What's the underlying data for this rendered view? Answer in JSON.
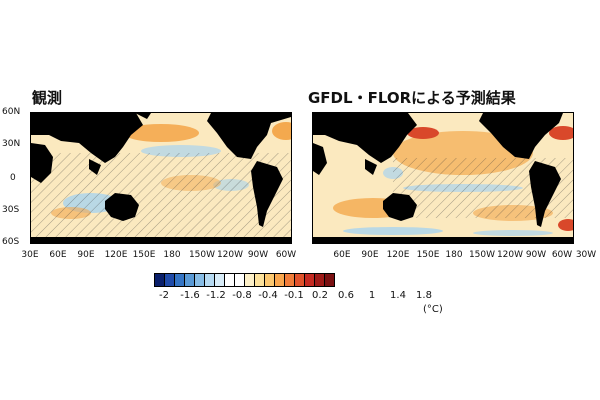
{
  "titles": {
    "left": "観測",
    "right": "GFDL・FLORによる予測結果"
  },
  "y_ticks": [
    "60N",
    "30N",
    "0",
    "30S",
    "60S"
  ],
  "x_ticks_left": [
    "30E",
    "60E",
    "90E",
    "120E",
    "150E",
    "180",
    "150W",
    "120W",
    "90W",
    "60W"
  ],
  "x_ticks_right": [
    "60E",
    "90E",
    "120E",
    "150E",
    "180",
    "150W",
    "120W",
    "90W",
    "60W",
    "30W"
  ],
  "colorbar": {
    "labels": [
      "-2",
      "-1.6",
      "-1.2",
      "-0.8",
      "-0.4",
      "-0.1",
      "0.2",
      "0.6",
      "1",
      "1.4",
      "1.8"
    ],
    "unit": "(°C)",
    "colors": [
      "#0a1f6a",
      "#1f4aa8",
      "#3474c4",
      "#5a9ad6",
      "#88bde6",
      "#b6daf2",
      "#d8ecf8",
      "#ffffff",
      "#ffffff",
      "#fdf0c8",
      "#fde29c",
      "#fcc870",
      "#f9a64e",
      "#f07c3a",
      "#e0522c",
      "#c42a22",
      "#9e1a18",
      "#7a1012"
    ]
  },
  "map_colors": {
    "land": "#000000",
    "ocean_base": "#fbe9bf",
    "warm": "#f4a94e",
    "hot": "#d9482a",
    "cool": "#a9d3ef",
    "hatch": "#333333"
  }
}
